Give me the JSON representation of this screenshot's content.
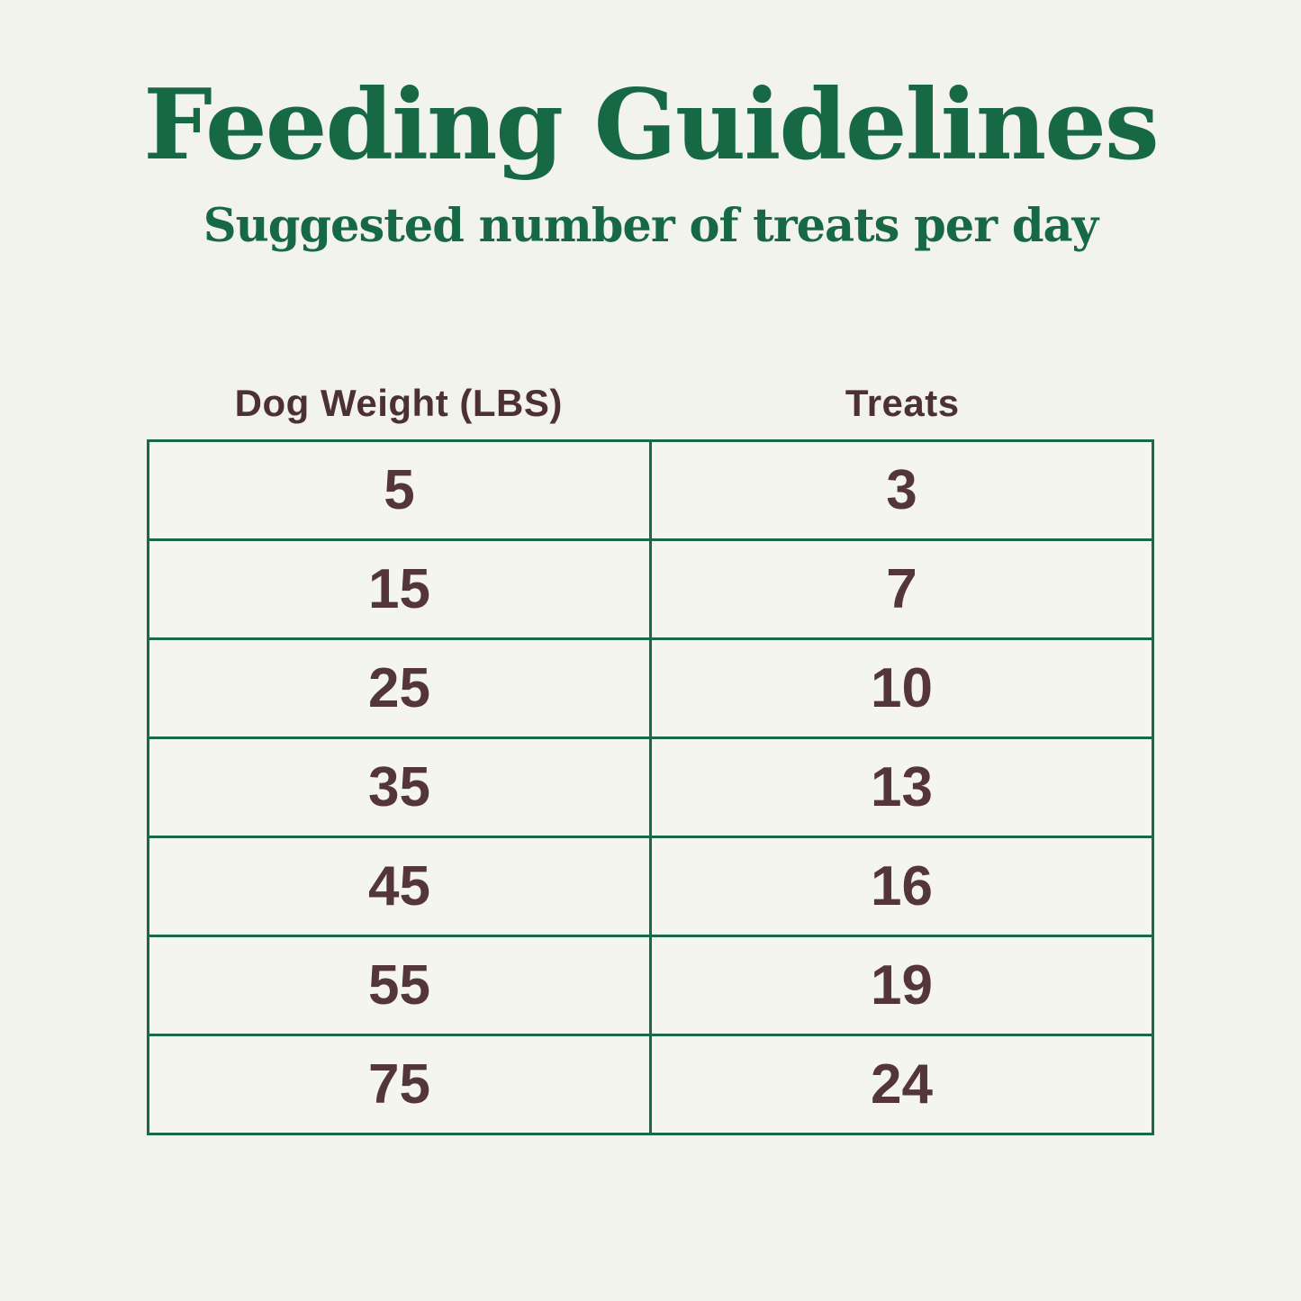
{
  "page": {
    "title": "Feeding Guidelines",
    "subtitle": "Suggested number of treats per day"
  },
  "table": {
    "headers": {
      "weight": "Dog Weight (LBS)",
      "treats": "Treats"
    },
    "rows": [
      {
        "weight": "5",
        "treats": "3"
      },
      {
        "weight": "15",
        "treats": "7"
      },
      {
        "weight": "25",
        "treats": "10"
      },
      {
        "weight": "35",
        "treats": "13"
      },
      {
        "weight": "45",
        "treats": "16"
      },
      {
        "weight": "55",
        "treats": "19"
      },
      {
        "weight": "75",
        "treats": "24"
      }
    ]
  },
  "colors": {
    "background": "#f2f3ec",
    "title_green": "#176943",
    "table_border_green": "#17694a",
    "header_brown": "#4d3033",
    "number_brown": "#543638"
  },
  "chart_data": {
    "type": "table",
    "title": "Feeding Guidelines",
    "subtitle": "Suggested number of treats per day",
    "columns": [
      "Dog Weight (LBS)",
      "Treats"
    ],
    "rows": [
      [
        5,
        3
      ],
      [
        15,
        7
      ],
      [
        25,
        10
      ],
      [
        35,
        13
      ],
      [
        45,
        16
      ],
      [
        55,
        19
      ],
      [
        75,
        24
      ]
    ],
    "layout_hints": {
      "header_position": "above-table",
      "grid": "full-borders",
      "columns_equal_width": true
    }
  }
}
